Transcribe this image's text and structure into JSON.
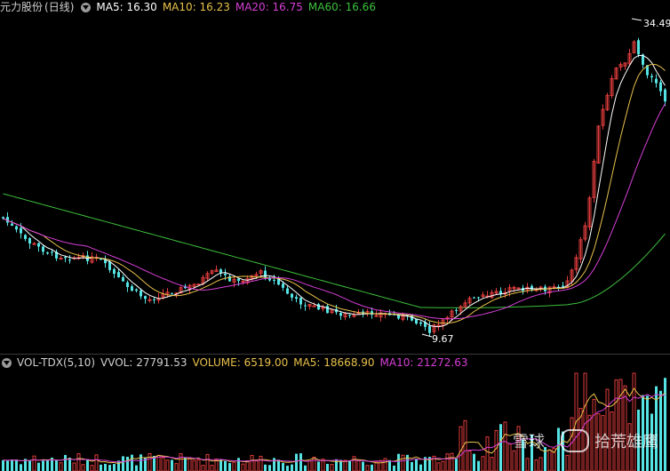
{
  "header": {
    "stock_name": "元力股份",
    "period": "(日线)",
    "ma_items": [
      {
        "label": "MA5: 16.30",
        "color": "#ffffff"
      },
      {
        "label": "MA10: 16.23",
        "color": "#e8c14a"
      },
      {
        "label": "MA20: 16.75",
        "color": "#d63fd6"
      },
      {
        "label": "MA60: 16.66",
        "color": "#3cc03c"
      }
    ]
  },
  "volume_legend": {
    "indicator": "VOL-TDX(5,10)",
    "vvol": "VVOL: 27791.53",
    "volume": "VOLUME: 6519.00",
    "ma5": "MA5: 18668.90",
    "ma10": "MA10: 21272.63"
  },
  "annotations": {
    "high_label": "34.49",
    "low_label": "9.67"
  },
  "watermark": {
    "brand_left": "雪球",
    "brand_right": "拾荒雄鹰"
  },
  "colors": {
    "up": "#e03c3c",
    "down": "#55e3e3",
    "ma5": "#ffffff",
    "ma10": "#e8c14a",
    "ma20": "#d63fd6",
    "ma60": "#3cc03c",
    "background": "#000000"
  },
  "chart_data": {
    "type": "candlestick",
    "price_range": [
      9.67,
      34.49
    ],
    "markers": {
      "high": 34.49,
      "low": 9.67
    },
    "ma_latest": {
      "MA5": 16.3,
      "MA10": 16.23,
      "MA20": 16.75,
      "MA60": 16.66
    },
    "volume_latest": {
      "VVOL": 27791.53,
      "VOLUME": 6519.0,
      "MA5": 18668.9,
      "MA10": 21272.63
    }
  }
}
